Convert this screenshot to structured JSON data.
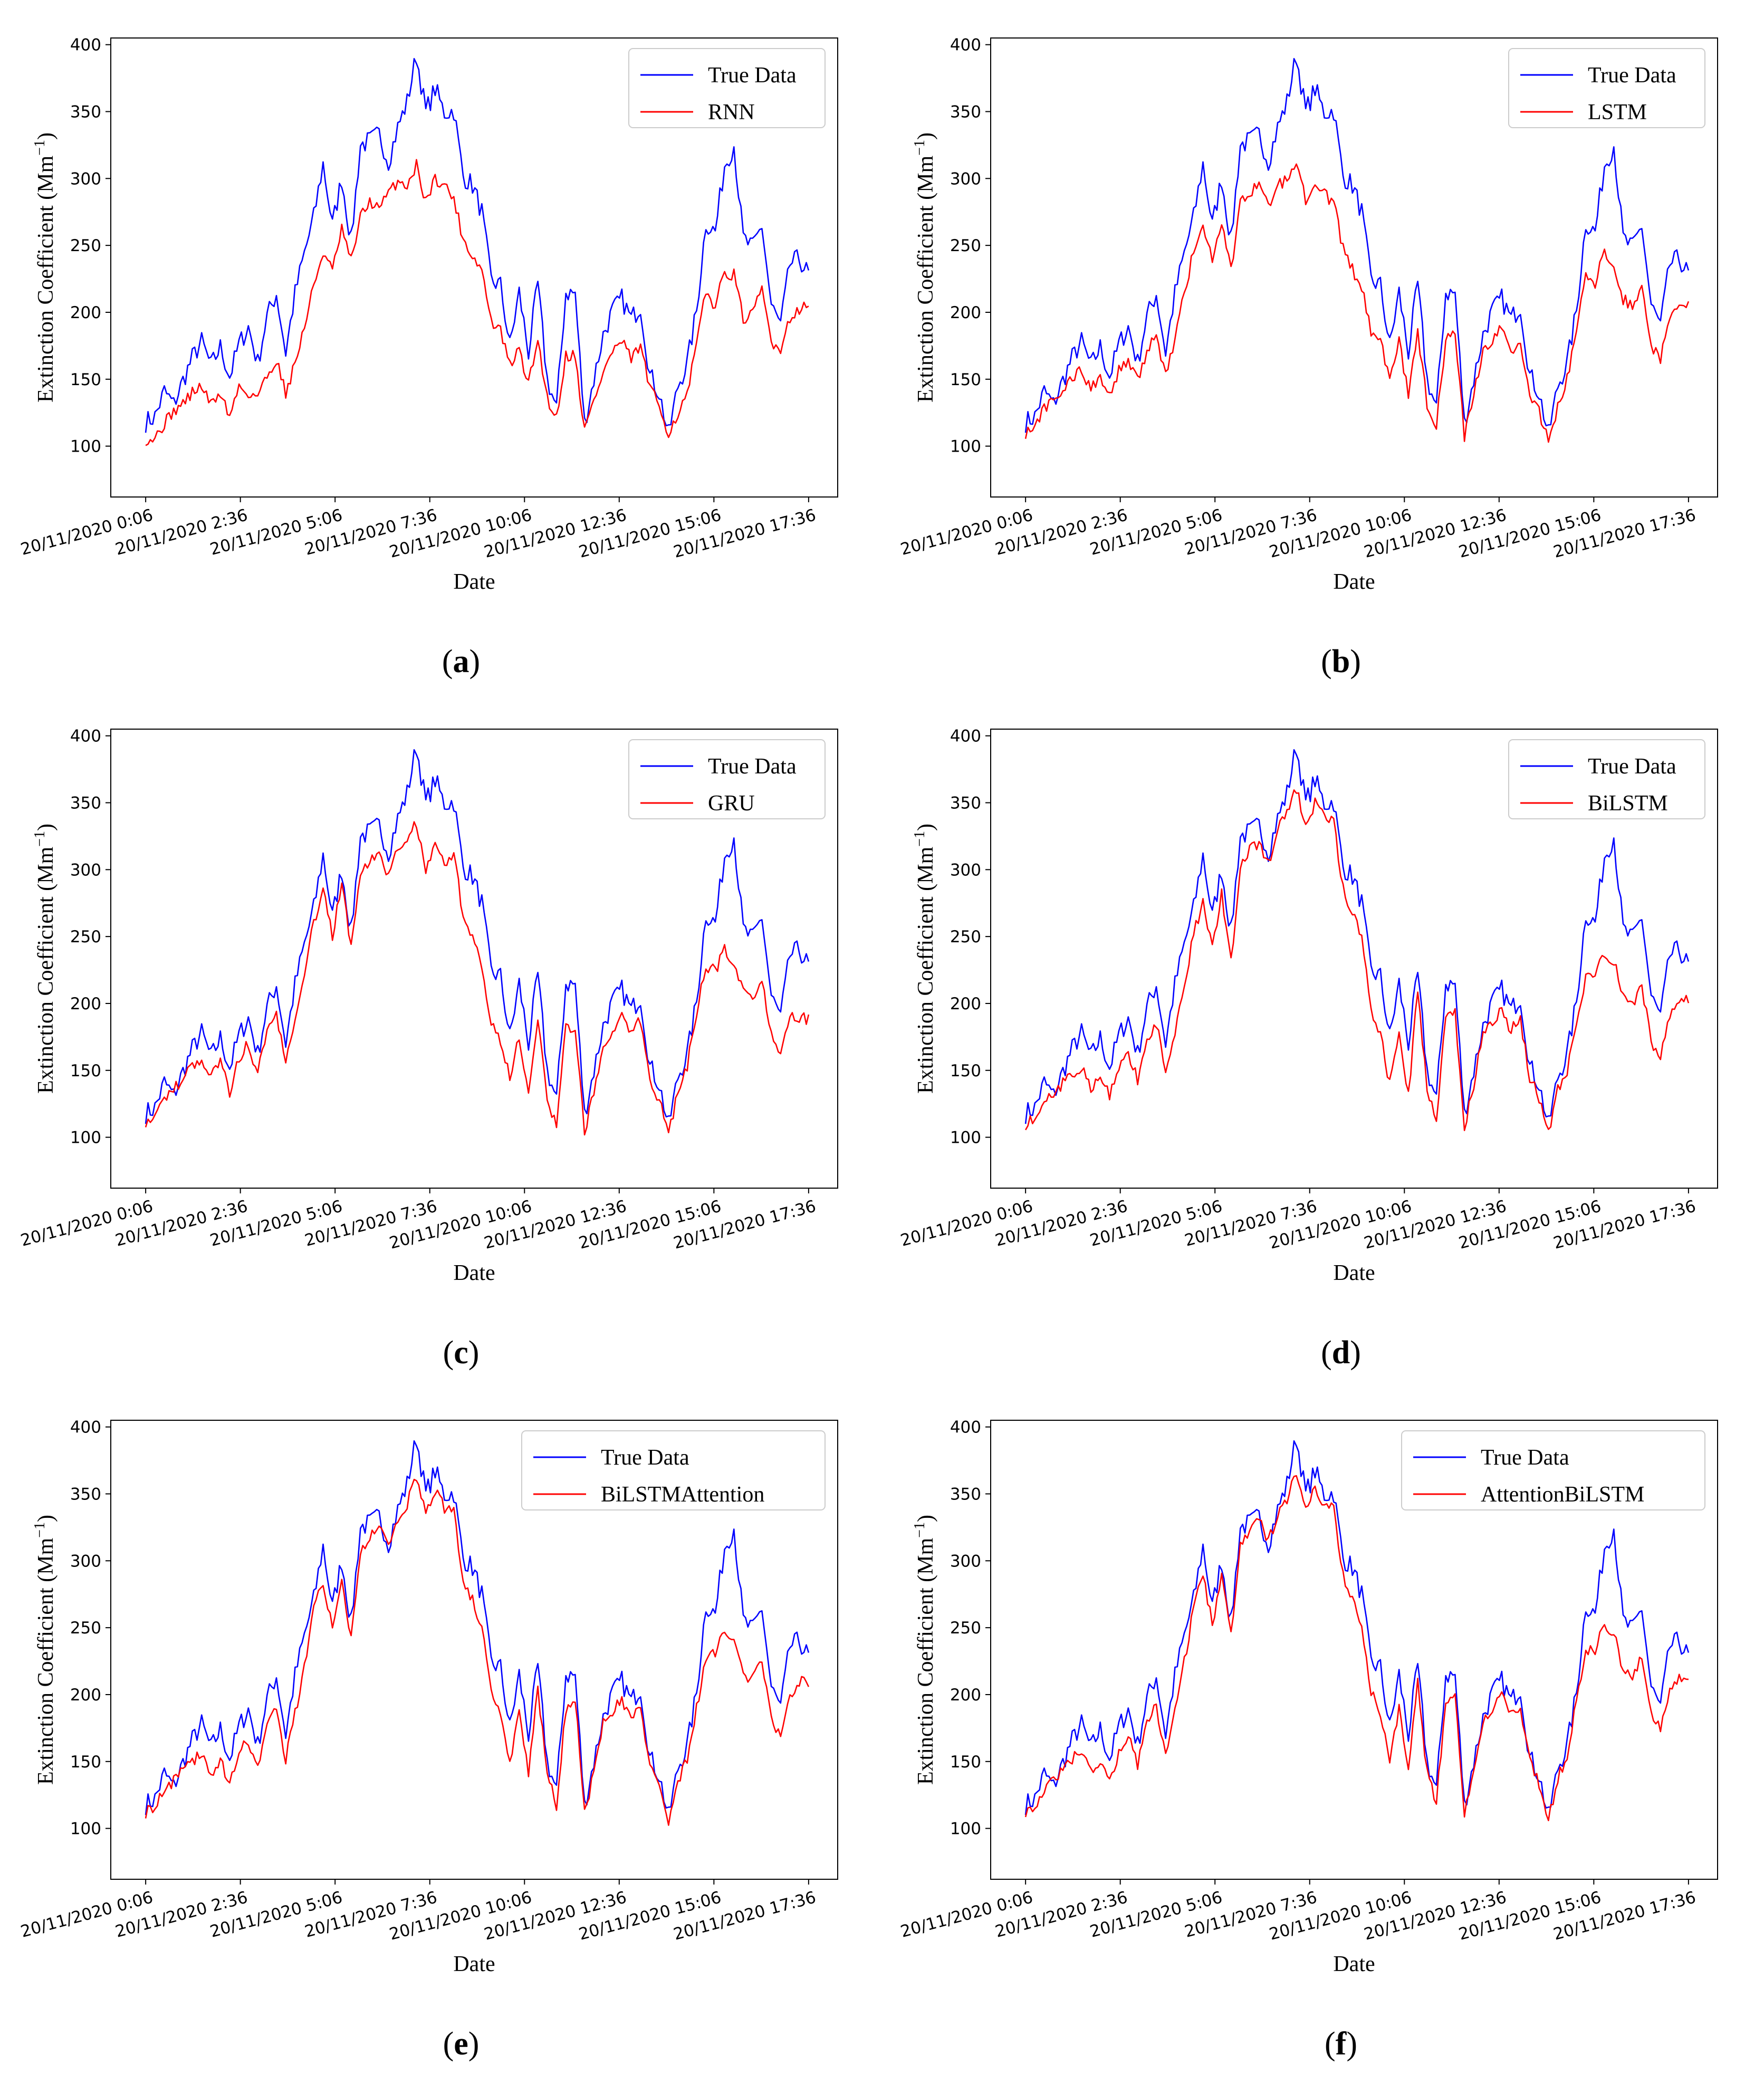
{
  "figure": {
    "panels_order": [
      "a",
      "b",
      "c",
      "d",
      "e",
      "f"
    ]
  },
  "colors": {
    "true_data": "#0000ff",
    "model": "#ff0000",
    "axis": "#000000",
    "legend_border": "#cccccc"
  },
  "chart_data": [
    {
      "type": "line",
      "panel": "(a)",
      "panel_letter": "a",
      "xlabel": "Date",
      "ylabel": "Extinction Coefficient (Mm^-1)",
      "ylabel_main": "Extinction Coefficient (Mm",
      "ylabel_sup": "−1",
      "ylabel_close": ")",
      "ylim": [
        62,
        405
      ],
      "yticks": [
        "100",
        "150",
        "200",
        "250",
        "300",
        "350",
        "400"
      ],
      "xticks": [
        "20/11/2020 0:06",
        "20/11/2020 2:36",
        "20/11/2020 5:06",
        "20/11/2020 7:36",
        "20/11/2020 10:06",
        "20/11/2020 12:36",
        "20/11/2020 15:06",
        "20/11/2020 17:36"
      ],
      "legend_location": "upper right",
      "series": [
        {
          "name": "True Data",
          "color": "#0000ff"
        },
        {
          "name": "RNN",
          "color": "#ff0000"
        }
      ]
    },
    {
      "type": "line",
      "panel": "(b)",
      "panel_letter": "b",
      "xlabel": "Date",
      "ylabel": "Extinction Coefficient (Mm^-1)",
      "ylabel_main": "Extinction Coefficient (Mm",
      "ylabel_sup": "−1",
      "ylabel_close": ")",
      "ylim": [
        62,
        405
      ],
      "yticks": [
        "100",
        "150",
        "200",
        "250",
        "300",
        "350",
        "400"
      ],
      "xticks": [
        "20/11/2020 0:06",
        "20/11/2020 2:36",
        "20/11/2020 5:06",
        "20/11/2020 7:36",
        "20/11/2020 10:06",
        "20/11/2020 12:36",
        "20/11/2020 15:06",
        "20/11/2020 17:36"
      ],
      "legend_location": "upper right",
      "series": [
        {
          "name": "True Data",
          "color": "#0000ff"
        },
        {
          "name": "LSTM",
          "color": "#ff0000"
        }
      ]
    },
    {
      "type": "line",
      "panel": "(c)",
      "panel_letter": "c",
      "xlabel": "Date",
      "ylabel": "Extinction Coefficient (Mm^-1)",
      "ylabel_main": "Extinction Coefficient (Mm",
      "ylabel_sup": "−1",
      "ylabel_close": ")",
      "ylim": [
        62,
        405
      ],
      "yticks": [
        "100",
        "150",
        "200",
        "250",
        "300",
        "350",
        "400"
      ],
      "xticks": [
        "20/11/2020 0:06",
        "20/11/2020 2:36",
        "20/11/2020 5:06",
        "20/11/2020 7:36",
        "20/11/2020 10:06",
        "20/11/2020 12:36",
        "20/11/2020 15:06",
        "20/11/2020 17:36"
      ],
      "legend_location": "upper right",
      "series": [
        {
          "name": "True Data",
          "color": "#0000ff"
        },
        {
          "name": "GRU",
          "color": "#ff0000"
        }
      ]
    },
    {
      "type": "line",
      "panel": "(d)",
      "panel_letter": "d",
      "xlabel": "Date",
      "ylabel": "Extinction Coefficient (Mm^-1)",
      "ylabel_main": "Extinction Coefficient (Mm",
      "ylabel_sup": "−1",
      "ylabel_close": ")",
      "ylim": [
        62,
        405
      ],
      "yticks": [
        "100",
        "150",
        "200",
        "250",
        "300",
        "350",
        "400"
      ],
      "xticks": [
        "20/11/2020 0:06",
        "20/11/2020 2:36",
        "20/11/2020 5:06",
        "20/11/2020 7:36",
        "20/11/2020 10:06",
        "20/11/2020 12:36",
        "20/11/2020 15:06",
        "20/11/2020 17:36"
      ],
      "legend_location": "upper right",
      "series": [
        {
          "name": "True Data",
          "color": "#0000ff"
        },
        {
          "name": "BiLSTM",
          "color": "#ff0000"
        }
      ]
    },
    {
      "type": "line",
      "panel": "(e)",
      "panel_letter": "e",
      "xlabel": "Date",
      "ylabel": "Extinction Coefficient (Mm^-1)",
      "ylabel_main": "Extinction Coefficient (Mm",
      "ylabel_sup": "−1",
      "ylabel_close": ")",
      "ylim": [
        62,
        405
      ],
      "yticks": [
        "100",
        "150",
        "200",
        "250",
        "300",
        "350",
        "400"
      ],
      "xticks": [
        "20/11/2020 0:06",
        "20/11/2020 2:36",
        "20/11/2020 5:06",
        "20/11/2020 7:36",
        "20/11/2020 10:06",
        "20/11/2020 12:36",
        "20/11/2020 15:06",
        "20/11/2020 17:36"
      ],
      "legend_location": "upper right",
      "series": [
        {
          "name": "True Data",
          "color": "#0000ff"
        },
        {
          "name": "BiLSTMAttention",
          "color": "#ff0000"
        }
      ]
    },
    {
      "type": "line",
      "panel": "(f)",
      "panel_letter": "f",
      "xlabel": "Date",
      "ylabel": "Extinction Coefficient (Mm^-1)",
      "ylabel_main": "Extinction Coefficient (Mm",
      "ylabel_sup": "−1",
      "ylabel_close": ")",
      "ylim": [
        62,
        405
      ],
      "yticks": [
        "100",
        "150",
        "200",
        "250",
        "300",
        "350",
        "400"
      ],
      "xticks": [
        "20/11/2020 0:06",
        "20/11/2020 2:36",
        "20/11/2020 5:06",
        "20/11/2020 7:36",
        "20/11/2020 10:06",
        "20/11/2020 12:36",
        "20/11/2020 15:06",
        "20/11/2020 17:36"
      ],
      "legend_location": "upper right",
      "series": [
        {
          "name": "True Data",
          "color": "#0000ff"
        },
        {
          "name": "AttentionBiLSTM",
          "color": "#ff0000"
        }
      ]
    }
  ],
  "true_series": {
    "x_step_minutes": 15,
    "count": 72,
    "values": [
      118,
      122,
      141,
      131,
      149,
      166,
      178,
      160,
      174,
      152,
      176,
      189,
      162,
      197,
      214,
      170,
      214,
      244,
      271,
      311,
      265,
      300,
      253,
      325,
      328,
      333,
      313,
      338,
      357,
      392,
      350,
      367,
      349,
      351,
      302,
      295,
      275,
      224,
      220,
      175,
      215,
      170,
      221,
      150,
      128,
      215,
      214,
      117,
      150,
      183,
      201,
      210,
      195,
      205,
      153,
      140,
      108,
      145,
      162,
      201,
      267,
      260,
      310,
      325,
      255,
      248,
      265,
      205,
      190,
      236,
      240,
      228
    ]
  },
  "model_series": [
    {
      "panel": "a",
      "values": [
        105,
        106,
        117,
        126,
        132,
        140,
        145,
        131,
        140,
        122,
        145,
        139,
        138,
        152,
        165,
        140,
        162,
        189,
        220,
        245,
        231,
        262,
        238,
        271,
        283,
        277,
        289,
        298,
        295,
        310,
        283,
        300,
        295,
        285,
        255,
        242,
        232,
        193,
        186,
        160,
        172,
        146,
        180,
        136,
        121,
        168,
        168,
        112,
        134,
        155,
        171,
        178,
        165,
        175,
        143,
        130,
        110,
        124,
        138,
        176,
        215,
        205,
        230,
        228,
        195,
        198,
        218,
        178,
        173,
        196,
        203,
        204
      ]
    },
    {
      "panel": "b",
      "values": [
        110,
        116,
        128,
        134,
        141,
        150,
        157,
        143,
        153,
        137,
        157,
        164,
        148,
        172,
        184,
        153,
        181,
        213,
        247,
        266,
        238,
        268,
        230,
        285,
        290,
        296,
        279,
        295,
        299,
        315,
        285,
        298,
        288,
        282,
        247,
        232,
        218,
        186,
        180,
        150,
        178,
        138,
        186,
        132,
        116,
        180,
        182,
        108,
        138,
        170,
        178,
        188,
        170,
        178,
        140,
        125,
        104,
        130,
        150,
        186,
        227,
        222,
        245,
        238,
        210,
        205,
        219,
        175,
        165,
        198,
        205,
        206
      ]
    },
    {
      "panel": "c",
      "values": [
        112,
        118,
        128,
        135,
        145,
        153,
        160,
        145,
        155,
        134,
        160,
        170,
        148,
        180,
        192,
        155,
        190,
        225,
        260,
        285,
        250,
        290,
        240,
        300,
        305,
        312,
        295,
        315,
        320,
        335,
        300,
        320,
        305,
        312,
        265,
        250,
        230,
        185,
        172,
        145,
        176,
        132,
        192,
        130,
        108,
        181,
        183,
        104,
        134,
        170,
        181,
        193,
        176,
        188,
        142,
        128,
        102,
        134,
        154,
        192,
        228,
        224,
        240,
        232,
        208,
        204,
        216,
        178,
        165,
        192,
        190,
        188
      ]
    },
    {
      "panel": "d",
      "values": [
        110,
        115,
        126,
        133,
        140,
        148,
        152,
        137,
        146,
        130,
        152,
        163,
        143,
        172,
        186,
        150,
        180,
        214,
        252,
        275,
        240,
        283,
        230,
        300,
        315,
        320,
        305,
        330,
        342,
        360,
        335,
        350,
        340,
        338,
        285,
        268,
        248,
        195,
        176,
        140,
        180,
        130,
        210,
        135,
        110,
        190,
        195,
        105,
        140,
        178,
        186,
        196,
        180,
        188,
        145,
        130,
        102,
        135,
        150,
        188,
        220,
        220,
        238,
        232,
        205,
        200,
        214,
        170,
        160,
        190,
        200,
        204
      ]
    },
    {
      "panel": "e",
      "values": [
        112,
        117,
        128,
        135,
        143,
        151,
        156,
        140,
        150,
        134,
        156,
        166,
        146,
        176,
        190,
        152,
        186,
        222,
        262,
        285,
        248,
        290,
        240,
        308,
        318,
        325,
        310,
        330,
        343,
        362,
        335,
        352,
        340,
        340,
        285,
        270,
        250,
        200,
        185,
        150,
        188,
        140,
        205,
        140,
        118,
        190,
        198,
        112,
        140,
        178,
        187,
        197,
        182,
        190,
        148,
        132,
        105,
        135,
        152,
        190,
        228,
        230,
        248,
        244,
        215,
        212,
        225,
        182,
        170,
        200,
        210,
        208
      ]
    },
    {
      "panel": "f",
      "values": [
        113,
        118,
        129,
        136,
        144,
        152,
        158,
        141,
        151,
        135,
        157,
        168,
        147,
        178,
        191,
        153,
        188,
        224,
        265,
        290,
        252,
        292,
        243,
        312,
        322,
        330,
        315,
        334,
        345,
        365,
        338,
        355,
        343,
        342,
        288,
        272,
        252,
        202,
        187,
        152,
        190,
        142,
        208,
        142,
        120,
        193,
        200,
        113,
        142,
        180,
        190,
        200,
        184,
        192,
        150,
        134,
        106,
        137,
        154,
        194,
        232,
        234,
        252,
        247,
        218,
        215,
        228,
        185,
        173,
        204,
        214,
        212
      ]
    }
  ]
}
